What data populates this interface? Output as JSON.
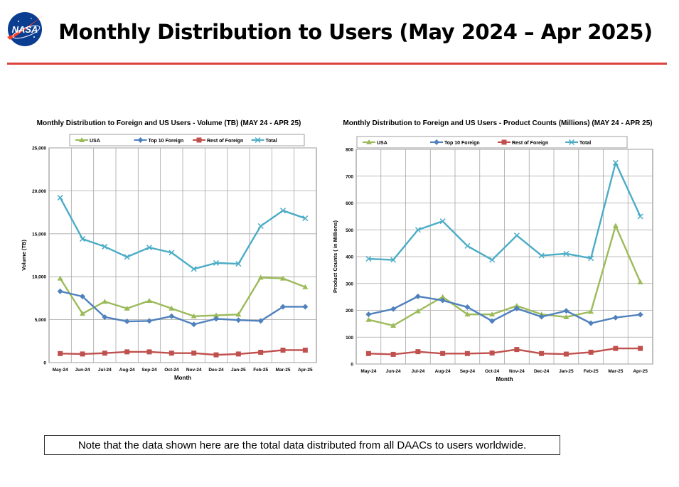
{
  "slide": {
    "title": "Monthly Distribution to Users (May 2024 – Apr 2025)",
    "logo_text": "NASA",
    "note": "Note that the data shown here are the total data distributed from all DAACs to users worldwide.",
    "rule_color": "#d9433a"
  },
  "chart_data": [
    {
      "type": "line",
      "title": "Monthly Distribution to Foreign and US Users - Volume  (TB) (MAY 24 - APR 25)",
      "xlabel": "Month",
      "ylabel": "Volume (TB)",
      "ylim": [
        0,
        25000
      ],
      "yticks": [
        0,
        5000,
        10000,
        15000,
        20000,
        25000
      ],
      "ytick_labels": [
        "0",
        "5,000",
        "10,000",
        "15,000",
        "20,000",
        "25,000"
      ],
      "grid": true,
      "legend": "top",
      "categories": [
        "May-24",
        "Jun-24",
        "Jul-24",
        "Aug-24",
        "Sep-24",
        "Oct-24",
        "Nov-24",
        "Dec-24",
        "Jan-25",
        "Feb-25",
        "Mar-25",
        "Apr-25"
      ],
      "series": [
        {
          "name": "USA",
          "color": "#9bbb59",
          "marker": "triangle",
          "values": [
            9800,
            5700,
            7100,
            6300,
            7200,
            6300,
            5400,
            5500,
            5600,
            9900,
            9800,
            8800
          ]
        },
        {
          "name": "Top 10 Foreign",
          "color": "#4f81bd",
          "marker": "diamond",
          "values": [
            8300,
            7700,
            5300,
            4800,
            4850,
            5400,
            4450,
            5100,
            4950,
            4850,
            6500,
            6500
          ]
        },
        {
          "name": "Rest of Foreign",
          "color": "#c0504d",
          "marker": "square",
          "values": [
            1050,
            1000,
            1100,
            1250,
            1250,
            1100,
            1100,
            900,
            1000,
            1200,
            1450,
            1450
          ]
        },
        {
          "name": "Total",
          "color": "#4bacc6",
          "marker": "x",
          "values": [
            19200,
            14400,
            13500,
            12300,
            13400,
            12800,
            10900,
            11600,
            11500,
            15900,
            17700,
            16800
          ]
        }
      ]
    },
    {
      "type": "line",
      "title": "Monthly Distribution to Foreign and US Users - Product Counts (Millions) (MAY 24 - APR 25)",
      "xlabel": "Month",
      "ylabel": "Product Counts ( in Millions)",
      "ylim": [
        0,
        800
      ],
      "yticks": [
        0,
        100,
        200,
        300,
        400,
        500,
        600,
        700,
        800
      ],
      "ytick_labels": [
        "0",
        "100",
        "200",
        "300",
        "400",
        "500",
        "600",
        "700",
        "800"
      ],
      "grid": true,
      "legend": "top",
      "categories": [
        "May-24",
        "Jun-24",
        "Jul-24",
        "Aug-24",
        "Sep-24",
        "Oct-24",
        "Nov-24",
        "Dec-24",
        "Jan-25",
        "Feb-25",
        "Mar-25",
        "Apr-25"
      ],
      "series": [
        {
          "name": "USA",
          "color": "#9bbb59",
          "marker": "triangle",
          "values": [
            165,
            143,
            197,
            250,
            185,
            185,
            217,
            185,
            175,
            195,
            515,
            305
          ]
        },
        {
          "name": "Top 10 Foreign",
          "color": "#4f81bd",
          "marker": "diamond",
          "values": [
            185,
            205,
            252,
            237,
            212,
            160,
            207,
            176,
            198,
            152,
            173,
            184
          ]
        },
        {
          "name": "Rest of Foreign",
          "color": "#c0504d",
          "marker": "square",
          "values": [
            39,
            36,
            46,
            39,
            39,
            41,
            54,
            39,
            37,
            44,
            58,
            58
          ]
        },
        {
          "name": "Total",
          "color": "#4bacc6",
          "marker": "x",
          "values": [
            392,
            388,
            500,
            532,
            440,
            388,
            479,
            404,
            411,
            394,
            750,
            550
          ]
        }
      ]
    }
  ]
}
